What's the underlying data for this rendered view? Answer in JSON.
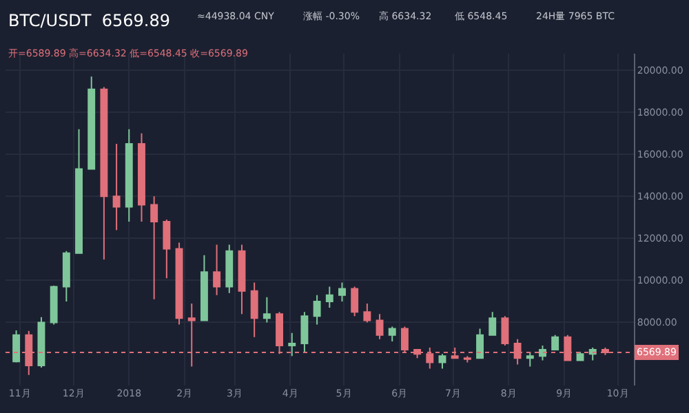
{
  "chart_data": {
    "type": "candlestick",
    "title": "BTC/USDT  6569.89",
    "annotations": [
      "≈44938.04 CNY",
      "涨幅 -0.30%",
      "高 6634.32",
      "低 6548.45",
      "24H量 7965 BTC",
      "开=6589.89 高=6634.32 低=6548.45 收=6569.89"
    ],
    "x": [
      "2017-10-30",
      "2017-11-06",
      "2017-11-13",
      "2017-11-20",
      "2017-11-27",
      "2017-12-04",
      "2017-12-11",
      "2017-12-18",
      "2017-12-25",
      "2018-01-01",
      "2018-01-08",
      "2018-01-15",
      "2018-01-22",
      "2018-01-29",
      "2018-02-05",
      "2018-02-12",
      "2018-02-19",
      "2018-02-26",
      "2018-03-05",
      "2018-03-12",
      "2018-03-19",
      "2018-03-26",
      "2018-04-02",
      "2018-04-09",
      "2018-04-16",
      "2018-04-23",
      "2018-04-30",
      "2018-05-07",
      "2018-05-14",
      "2018-05-21",
      "2018-05-28",
      "2018-06-04",
      "2018-06-11",
      "2018-06-18",
      "2018-06-25",
      "2018-07-02",
      "2018-07-09",
      "2018-07-16",
      "2018-07-23",
      "2018-07-30",
      "2018-08-06",
      "2018-08-13",
      "2018-08-20",
      "2018-08-27",
      "2018-09-03",
      "2018-09-10",
      "2018-09-17",
      "2018-09-24"
    ],
    "ohlc": [
      [
        6140,
        7620,
        6100,
        7400
      ],
      [
        7400,
        7600,
        5500,
        5950
      ],
      [
        5950,
        8250,
        5850,
        8000
      ],
      [
        8000,
        9750,
        7900,
        9700
      ],
      [
        9700,
        11400,
        9000,
        11300
      ],
      [
        11300,
        17200,
        11300,
        15300
      ],
      [
        15300,
        19700,
        15300,
        19100
      ],
      [
        19100,
        19200,
        11000,
        14000
      ],
      [
        14000,
        16500,
        12400,
        13500
      ],
      [
        13500,
        17200,
        12800,
        16500
      ],
      [
        16500,
        17000,
        12800,
        13600
      ],
      [
        13600,
        14000,
        9100,
        12800
      ],
      [
        12800,
        12900,
        10100,
        11500
      ],
      [
        11500,
        11800,
        7900,
        8200
      ],
      [
        8200,
        8900,
        5900,
        8100
      ],
      [
        8100,
        11200,
        8100,
        10400
      ],
      [
        10400,
        11700,
        9300,
        9700
      ],
      [
        9700,
        11700,
        9400,
        11400
      ],
      [
        11400,
        11700,
        8400,
        9500
      ],
      [
        9500,
        9900,
        7300,
        8200
      ],
      [
        8200,
        9200,
        8000,
        8400
      ],
      [
        8400,
        8500,
        6500,
        6900
      ],
      [
        6900,
        7500,
        6400,
        7000
      ],
      [
        7000,
        8500,
        6600,
        8300
      ],
      [
        8300,
        9300,
        7900,
        9000
      ],
      [
        9000,
        9700,
        8700,
        9300
      ],
      [
        9300,
        9900,
        9000,
        9600
      ],
      [
        9600,
        9700,
        8300,
        8500
      ],
      [
        8500,
        8900,
        8000,
        8100
      ],
      [
        8100,
        8400,
        7200,
        7400
      ],
      [
        7400,
        7800,
        7100,
        7700
      ],
      [
        7700,
        7800,
        6600,
        6700
      ],
      [
        6700,
        6700,
        6300,
        6500
      ],
      [
        6500,
        6800,
        5800,
        6100
      ],
      [
        6100,
        6500,
        5800,
        6400
      ],
      [
        6400,
        6800,
        6300,
        6300
      ],
      [
        6300,
        6400,
        6100,
        6250
      ],
      [
        6300,
        7700,
        6300,
        7400
      ],
      [
        7400,
        8500,
        7400,
        8200
      ],
      [
        8200,
        8300,
        6900,
        7000
      ],
      [
        7000,
        7200,
        6000,
        6300
      ],
      [
        6300,
        6600,
        5900,
        6400
      ],
      [
        6400,
        6900,
        6200,
        6700
      ],
      [
        6700,
        7400,
        6700,
        7300
      ],
      [
        7300,
        7400,
        6200,
        6200
      ],
      [
        6200,
        6600,
        6200,
        6500
      ],
      [
        6500,
        6800,
        6200,
        6700
      ],
      [
        6700,
        6800,
        6450,
        6570
      ]
    ],
    "colors": [
      "#7fc79a",
      "#e0707a",
      "#7fc79a",
      "#7fc79a",
      "#7fc79a",
      "#7fc79a",
      "#7fc79a",
      "#e0707a",
      "#e0707a",
      "#7fc79a",
      "#e0707a",
      "#e0707a",
      "#e0707a",
      "#e0707a",
      "#e0707a",
      "#7fc79a",
      "#e0707a",
      "#7fc79a",
      "#e0707a",
      "#e0707a",
      "#7fc79a",
      "#e0707a",
      "#7fc79a",
      "#7fc79a",
      "#7fc79a",
      "#7fc79a",
      "#7fc79a",
      "#e0707a",
      "#e0707a",
      "#e0707a",
      "#7fc79a",
      "#e0707a",
      "#e0707a",
      "#e0707a",
      "#7fc79a",
      "#e0707a",
      "#e0707a",
      "#7fc79a",
      "#7fc79a",
      "#e0707a",
      "#e0707a",
      "#7fc79a",
      "#7fc79a",
      "#7fc79a",
      "#e0707a",
      "#7fc79a",
      "#7fc79a",
      "#e0707a"
    ],
    "xlim": [
      "2017-10-24",
      "2018-10-10"
    ],
    "xticks": [
      {
        "value": "2017-11-01",
        "label": "11月"
      },
      {
        "value": "2017-12-01",
        "label": "12月"
      },
      {
        "value": "2018-01-01",
        "label": "2018"
      },
      {
        "value": "2018-02-01",
        "label": "2月"
      },
      {
        "value": "2018-03-01",
        "label": "3月"
      },
      {
        "value": "2018-04-01",
        "label": "4月"
      },
      {
        "value": "2018-05-01",
        "label": "5月"
      },
      {
        "value": "2018-06-01",
        "label": "6月"
      },
      {
        "value": "2018-07-01",
        "label": "7月"
      },
      {
        "value": "2018-08-01",
        "label": "8月"
      },
      {
        "value": "2018-09-01",
        "label": "9月"
      },
      {
        "value": "2018-10-01",
        "label": "10月"
      }
    ],
    "ylim": [
      5000,
      20800
    ],
    "yticks": [
      {
        "value": 8000,
        "label": "8000.00"
      },
      {
        "value": 10000,
        "label": "10000.00"
      },
      {
        "value": 12000,
        "label": "12000.00"
      },
      {
        "value": 14000,
        "label": "14000.00"
      },
      {
        "value": 16000,
        "label": "16000.00"
      },
      {
        "value": 18000,
        "label": "18000.00"
      },
      {
        "value": 20000,
        "label": "20000.00"
      }
    ],
    "ref_lines": [
      {
        "axis": "y",
        "value": 6569.89,
        "label": "6569.89",
        "color": "#e0707a",
        "line_style": "dotted"
      }
    ],
    "grid": true
  }
}
